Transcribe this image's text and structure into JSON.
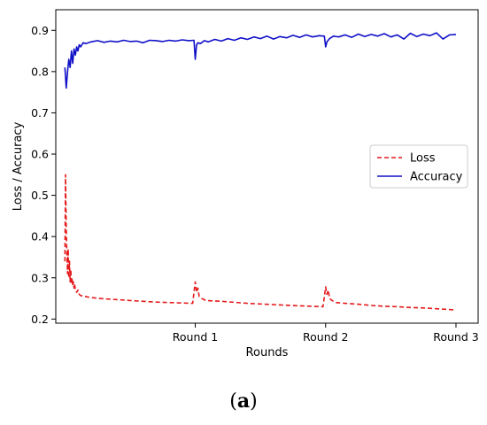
{
  "caption": {
    "open": "(",
    "letter": "a",
    "close": ")"
  },
  "chart_data": {
    "type": "line",
    "title": "",
    "xlabel": "Rounds",
    "ylabel": "Loss / Accuracy",
    "xlim": [
      -0.07,
      3.17
    ],
    "ylim": [
      0.19,
      0.95
    ],
    "xticks": [
      {
        "value": 1,
        "label": "Round 1"
      },
      {
        "value": 2,
        "label": "Round 2"
      },
      {
        "value": 3,
        "label": "Round 3"
      }
    ],
    "yticks": [
      0.2,
      0.3,
      0.4,
      0.5,
      0.6,
      0.7,
      0.8,
      0.9
    ],
    "grid": false,
    "legend_position": "center-right",
    "colors": {
      "loss": "#e41a1c",
      "accuracy": "#1010c8"
    },
    "series": [
      {
        "name": "Loss",
        "style": "dashed",
        "color": "#e41a1c",
        "x": [
          0.0,
          0.005,
          0.01,
          0.015,
          0.02,
          0.025,
          0.03,
          0.035,
          0.04,
          0.045,
          0.05,
          0.055,
          0.06,
          0.065,
          0.07,
          0.075,
          0.08,
          0.09,
          0.1,
          0.11,
          0.12,
          0.15,
          0.2,
          0.3,
          0.4,
          0.5,
          0.6,
          0.7,
          0.8,
          0.9,
          0.98,
          1.0,
          1.01,
          1.02,
          1.03,
          1.05,
          1.08,
          1.2,
          1.4,
          1.6,
          1.8,
          1.98,
          2.0,
          2.01,
          2.02,
          2.03,
          2.05,
          2.08,
          2.15,
          2.25,
          2.35,
          2.45,
          2.55,
          2.65,
          2.75,
          2.85,
          2.95,
          3.0
        ],
        "values": [
          0.34,
          0.55,
          0.42,
          0.36,
          0.31,
          0.37,
          0.3,
          0.34,
          0.29,
          0.32,
          0.285,
          0.3,
          0.28,
          0.29,
          0.275,
          0.285,
          0.27,
          0.265,
          0.27,
          0.26,
          0.257,
          0.255,
          0.252,
          0.249,
          0.247,
          0.245,
          0.243,
          0.241,
          0.24,
          0.239,
          0.238,
          0.29,
          0.265,
          0.275,
          0.255,
          0.25,
          0.245,
          0.243,
          0.238,
          0.235,
          0.232,
          0.23,
          0.278,
          0.26,
          0.27,
          0.25,
          0.245,
          0.24,
          0.238,
          0.236,
          0.233,
          0.231,
          0.23,
          0.228,
          0.227,
          0.225,
          0.223,
          0.222
        ]
      },
      {
        "name": "Accuracy",
        "style": "solid",
        "color": "#1010c8",
        "x": [
          0.0,
          0.01,
          0.02,
          0.03,
          0.04,
          0.05,
          0.06,
          0.07,
          0.08,
          0.09,
          0.1,
          0.11,
          0.12,
          0.14,
          0.16,
          0.2,
          0.25,
          0.3,
          0.35,
          0.4,
          0.45,
          0.5,
          0.55,
          0.6,
          0.65,
          0.7,
          0.75,
          0.8,
          0.85,
          0.9,
          0.95,
          0.99,
          1.0,
          1.01,
          1.02,
          1.04,
          1.07,
          1.1,
          1.15,
          1.2,
          1.25,
          1.3,
          1.35,
          1.4,
          1.45,
          1.5,
          1.55,
          1.6,
          1.65,
          1.7,
          1.75,
          1.8,
          1.85,
          1.9,
          1.95,
          1.99,
          2.0,
          2.01,
          2.03,
          2.06,
          2.1,
          2.15,
          2.2,
          2.25,
          2.3,
          2.35,
          2.4,
          2.45,
          2.5,
          2.55,
          2.6,
          2.65,
          2.7,
          2.75,
          2.8,
          2.85,
          2.9,
          2.95,
          3.0
        ],
        "values": [
          0.81,
          0.76,
          0.8,
          0.83,
          0.81,
          0.85,
          0.82,
          0.855,
          0.84,
          0.86,
          0.85,
          0.865,
          0.86,
          0.87,
          0.868,
          0.872,
          0.875,
          0.871,
          0.874,
          0.872,
          0.876,
          0.873,
          0.874,
          0.87,
          0.876,
          0.875,
          0.873,
          0.876,
          0.874,
          0.877,
          0.875,
          0.876,
          0.83,
          0.865,
          0.87,
          0.868,
          0.875,
          0.872,
          0.878,
          0.874,
          0.88,
          0.876,
          0.882,
          0.878,
          0.884,
          0.88,
          0.886,
          0.879,
          0.885,
          0.882,
          0.888,
          0.883,
          0.889,
          0.884,
          0.887,
          0.886,
          0.86,
          0.872,
          0.88,
          0.886,
          0.884,
          0.889,
          0.883,
          0.891,
          0.885,
          0.89,
          0.886,
          0.892,
          0.884,
          0.889,
          0.879,
          0.893,
          0.885,
          0.891,
          0.887,
          0.894,
          0.879,
          0.889,
          0.89
        ]
      }
    ]
  }
}
